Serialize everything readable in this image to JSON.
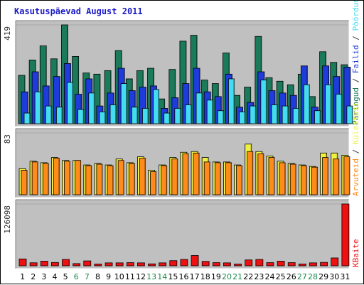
{
  "page": {
    "title": "Kasutuspäevad August 2011"
  },
  "colors": {
    "panel_bg": "#c0c0c0",
    "pages": "#1a7a5a",
    "files": "#1e3cdc",
    "hits": "#44dcf0",
    "visits": "#ff8c1a",
    "sites": "#f0f040",
    "kbytes": "#ee1111",
    "weekend_label": "#1a8a4a",
    "weekday_label": "#000000"
  },
  "chart_data": [
    {
      "type": "bar",
      "panel": "top",
      "ylim": [
        0,
        419
      ],
      "y_tick_label": "419",
      "legend": [
        {
          "name": "Päringud",
          "color": "#1a7a5a"
        },
        {
          "name": "Failid",
          "color": "#1e3cdc"
        },
        {
          "name": "Pöördumisi",
          "color": "#44dcf0"
        }
      ],
      "legend_separator": " / ",
      "series": [
        {
          "name": "Päringud",
          "values": [
            205,
            270,
            330,
            275,
            419,
            285,
            215,
            210,
            225,
            310,
            190,
            225,
            235,
            105,
            230,
            350,
            375,
            185,
            170,
            300,
            120,
            155,
            370,
            195,
            180,
            165,
            210,
            115,
            305,
            260,
            250
          ]
        },
        {
          "name": "Failid",
          "values": [
            135,
            220,
            160,
            200,
            255,
            125,
            190,
            75,
            130,
            235,
            140,
            155,
            160,
            65,
            110,
            170,
            235,
            135,
            115,
            210,
            70,
            90,
            220,
            140,
            130,
            120,
            245,
            70,
            245,
            200,
            240
          ]
        },
        {
          "name": "Pöördumisi",
          "values": [
            45,
            135,
            75,
            70,
            175,
            60,
            130,
            50,
            80,
            170,
            70,
            65,
            145,
            45,
            65,
            80,
            130,
            100,
            55,
            190,
            50,
            75,
            185,
            80,
            75,
            65,
            165,
            55,
            165,
            125,
            75
          ]
        }
      ]
    },
    {
      "type": "bar",
      "panel": "middle",
      "ylim": [
        0,
        83
      ],
      "y_tick_label": "83",
      "legend": [
        {
          "name": "Arvuteid",
          "color": "#ff8c1a"
        },
        {
          "name": "Külastusi",
          "color": "#f0f040"
        }
      ],
      "legend_separator": " / ",
      "series": [
        {
          "name": "Külastusi",
          "values": [
            35,
            45,
            43,
            50,
            46,
            46,
            40,
            42,
            40,
            48,
            43,
            51,
            33,
            40,
            50,
            57,
            58,
            50,
            44,
            44,
            40,
            68,
            58,
            52,
            45,
            42,
            40,
            38,
            56,
            56,
            53
          ]
        },
        {
          "name": "Arvuteid",
          "values": [
            33,
            44,
            42,
            49,
            45,
            46,
            39,
            41,
            39,
            46,
            42,
            49,
            31,
            39,
            48,
            55,
            56,
            44,
            43,
            43,
            39,
            58,
            55,
            50,
            43,
            41,
            39,
            37,
            50,
            48,
            51
          ]
        }
      ]
    },
    {
      "type": "bar",
      "panel": "bottom",
      "ylim": [
        0,
        126098
      ],
      "y_tick_label": "126098",
      "legend": [
        {
          "name": "KBaite",
          "color": "#ee1111"
        }
      ],
      "x": [
        "1",
        "2",
        "3",
        "4",
        "5",
        "6",
        "7",
        "8",
        "9",
        "10",
        "11",
        "12",
        "13",
        "14",
        "15",
        "16",
        "17",
        "18",
        "19",
        "20",
        "21",
        "22",
        "23",
        "24",
        "25",
        "26",
        "27",
        "28",
        "29",
        "30",
        "31"
      ],
      "weekend_days": [
        "6",
        "7",
        "13",
        "14",
        "20",
        "21",
        "27",
        "28"
      ],
      "series": [
        {
          "name": "KBaite",
          "values": [
            14000,
            6200,
            9500,
            6800,
            13000,
            4500,
            10000,
            3600,
            6000,
            6000,
            6500,
            6000,
            4000,
            6000,
            10500,
            13000,
            21000,
            9000,
            6500,
            6000,
            3600,
            12000,
            13000,
            6500,
            9500,
            6500,
            3800,
            6000,
            7000,
            16000,
            126098
          ]
        }
      ]
    }
  ]
}
